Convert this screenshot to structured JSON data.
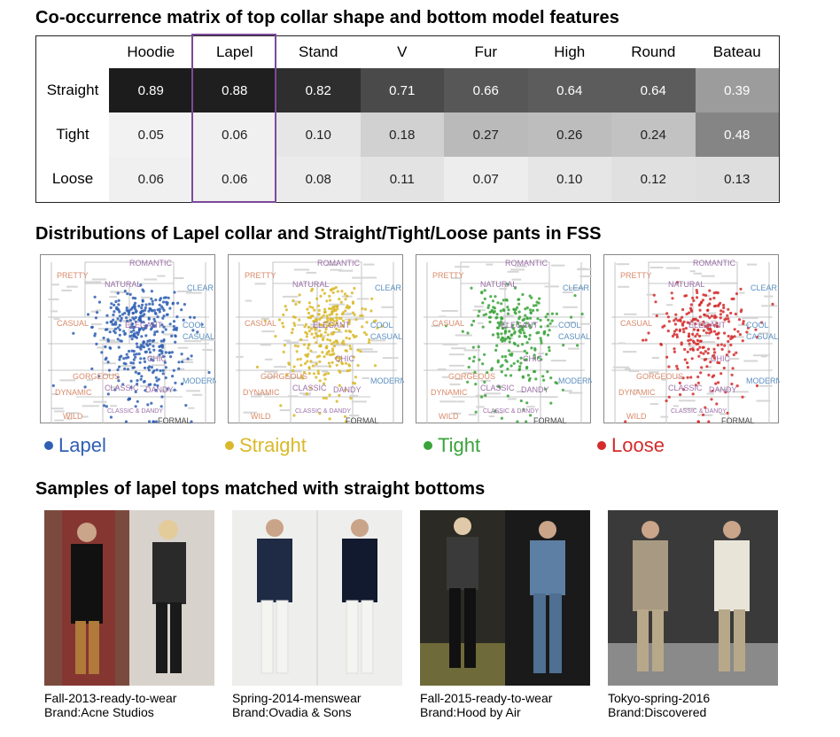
{
  "titles": {
    "matrix": "Co-occurrence matrix of top collar shape and bottom model features",
    "distributions": "Distributions of Lapel collar and Straight/Tight/Loose pants in FSS",
    "samples": "Samples of lapel tops matched with straight bottoms"
  },
  "chart_data": [
    {
      "type": "heatmap",
      "title": "Co-occurrence matrix of top collar shape and bottom model features",
      "columns": [
        "Hoodie",
        "Lapel",
        "Stand",
        "V",
        "Fur",
        "High",
        "Round",
        "Bateau"
      ],
      "rows": [
        "Straight",
        "Tight",
        "Loose"
      ],
      "values": [
        [
          "0.89",
          "0.88",
          "0.82",
          "0.71",
          "0.66",
          "0.64",
          "0.64",
          "0.39"
        ],
        [
          "0.05",
          "0.06",
          "0.10",
          "0.18",
          "0.27",
          "0.26",
          "0.24",
          "0.48"
        ],
        [
          "0.06",
          "0.06",
          "0.08",
          "0.11",
          "0.07",
          "0.10",
          "0.12",
          "0.13"
        ]
      ],
      "highlighted_column": "Lapel",
      "highlight_color": "#7b4a9b"
    },
    {
      "type": "scatter",
      "title": "Distributions of Lapel collar and Straight/Tight/Loose pants in FSS",
      "map_labels": [
        {
          "text": "ROMANTIC",
          "color": "#9b6fa8"
        },
        {
          "text": "PRETTY",
          "color": "#d88a6a"
        },
        {
          "text": "NATURAL",
          "color": "#9b6fa8"
        },
        {
          "text": "CLEAR",
          "color": "#5b8fc0"
        },
        {
          "text": "CASUAL",
          "color": "#d88a6a"
        },
        {
          "text": "ELEGANT",
          "color": "#9b6fa8"
        },
        {
          "text": "COOL",
          "color": "#5b8fc0"
        },
        {
          "text": "CASUAL",
          "color": "#5b8fc0"
        },
        {
          "text": "CHIC",
          "color": "#9b6fa8"
        },
        {
          "text": "GORGEOUS",
          "color": "#d88a6a"
        },
        {
          "text": "MODERN",
          "color": "#5b8fc0"
        },
        {
          "text": "DYNAMIC",
          "color": "#d88a6a"
        },
        {
          "text": "CLASSIC",
          "color": "#9b6fa8"
        },
        {
          "text": "DANDY",
          "color": "#9b6fa8"
        },
        {
          "text": "WILD",
          "color": "#d88a6a"
        },
        {
          "text": "CLASSIC & DANDY",
          "color": "#9b6fa8"
        },
        {
          "text": "FORMAL",
          "color": "#444444"
        }
      ],
      "series": [
        {
          "name": "Lapel",
          "color": "#2f5fb3"
        },
        {
          "name": "Straight",
          "color": "#d9b92a"
        },
        {
          "name": "Tight",
          "color": "#3aa33a"
        },
        {
          "name": "Loose",
          "color": "#d42b2b"
        }
      ]
    }
  ],
  "samples": [
    {
      "line1": "Fall-2013-ready-to-wear",
      "line2": "Brand:Acne Studios"
    },
    {
      "line1": "Spring-2014-menswear",
      "line2": "Brand:Ovadia & Sons"
    },
    {
      "line1": "Fall-2015-ready-to-wear",
      "line2": "Brand:Hood by Air"
    },
    {
      "line1": "Tokyo-spring-2016",
      "line2": "Brand:Discovered"
    }
  ]
}
